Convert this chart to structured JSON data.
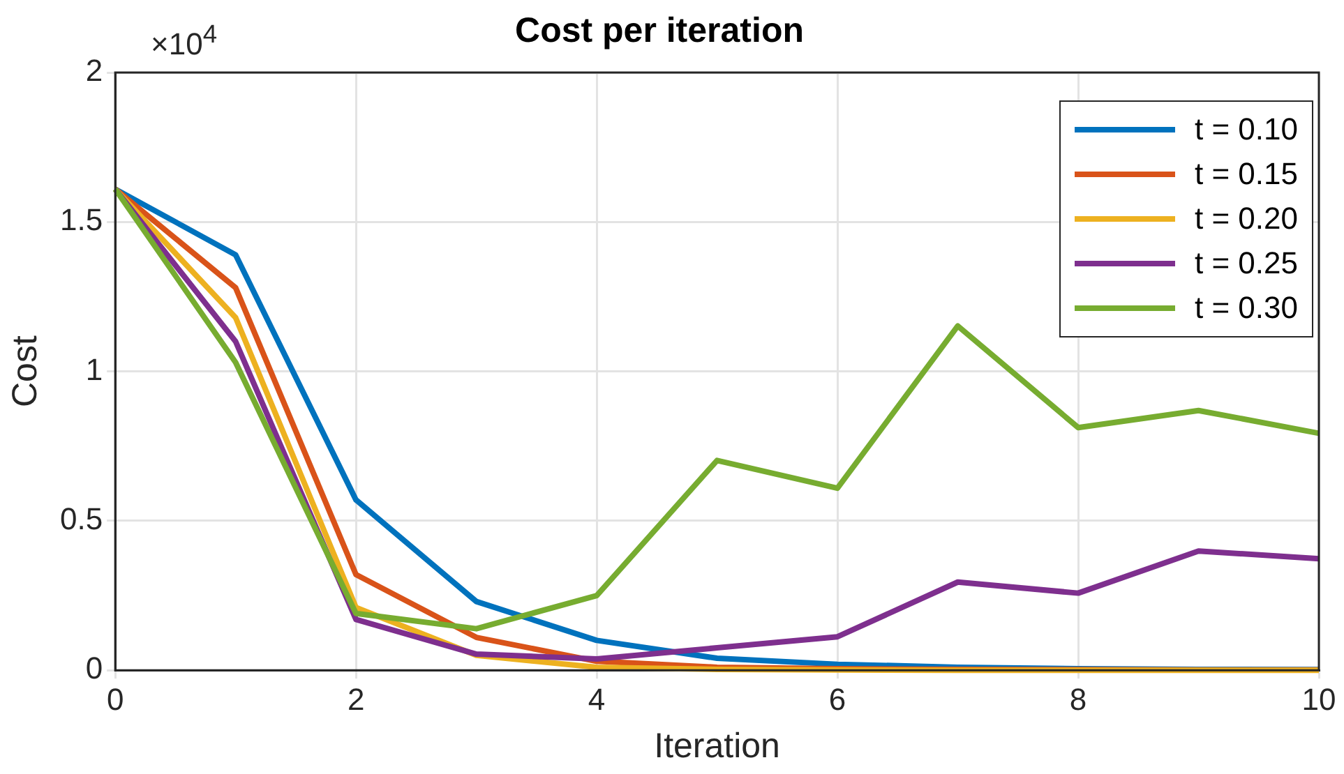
{
  "chart_data": {
    "type": "line",
    "title": "Cost per iteration",
    "xlabel": "Iteration",
    "ylabel": "Cost",
    "annotations": [
      "×10$^{4}$"
    ],
    "x": [
      0,
      1,
      2,
      3,
      4,
      5,
      6,
      7,
      8,
      9,
      10
    ],
    "series": [
      {
        "name": "t = 0.10",
        "color": "#0072bd",
        "values": [
          1.61,
          1.39,
          0.57,
          0.23,
          0.1,
          0.04,
          0.02,
          0.01,
          0.005,
          0.003,
          0.002
        ]
      },
      {
        "name": "t = 0.15",
        "color": "#d95319",
        "values": [
          1.61,
          1.28,
          0.32,
          0.11,
          0.03,
          0.01,
          0.005,
          0.003,
          0.002,
          0.001,
          0.001
        ]
      },
      {
        "name": "t = 0.20",
        "color": "#edb120",
        "values": [
          1.61,
          1.18,
          0.21,
          0.05,
          0.01,
          0.003,
          0.001,
          0,
          0,
          0,
          0
        ]
      },
      {
        "name": "t = 0.25",
        "color": "#7e2f8e",
        "values": [
          1.61,
          1.1,
          0.17,
          0.054,
          0.038,
          0.075,
          0.112,
          0.295,
          0.258,
          0.399,
          0.373
        ]
      },
      {
        "name": "t = 0.30",
        "color": "#77ac30",
        "values": [
          1.61,
          1.03,
          0.19,
          0.139,
          0.25,
          0.702,
          0.609,
          1.152,
          0.812,
          0.869,
          0.793
        ]
      }
    ],
    "xlim": [
      0,
      10
    ],
    "xticks": [
      0,
      2,
      4,
      6,
      8,
      10
    ],
    "ylim": [
      0,
      2
    ],
    "yticks": [
      0,
      0.5,
      1,
      1.5,
      2
    ],
    "grid": true,
    "legend": "top right",
    "marker": "none",
    "line_style": "solid"
  }
}
